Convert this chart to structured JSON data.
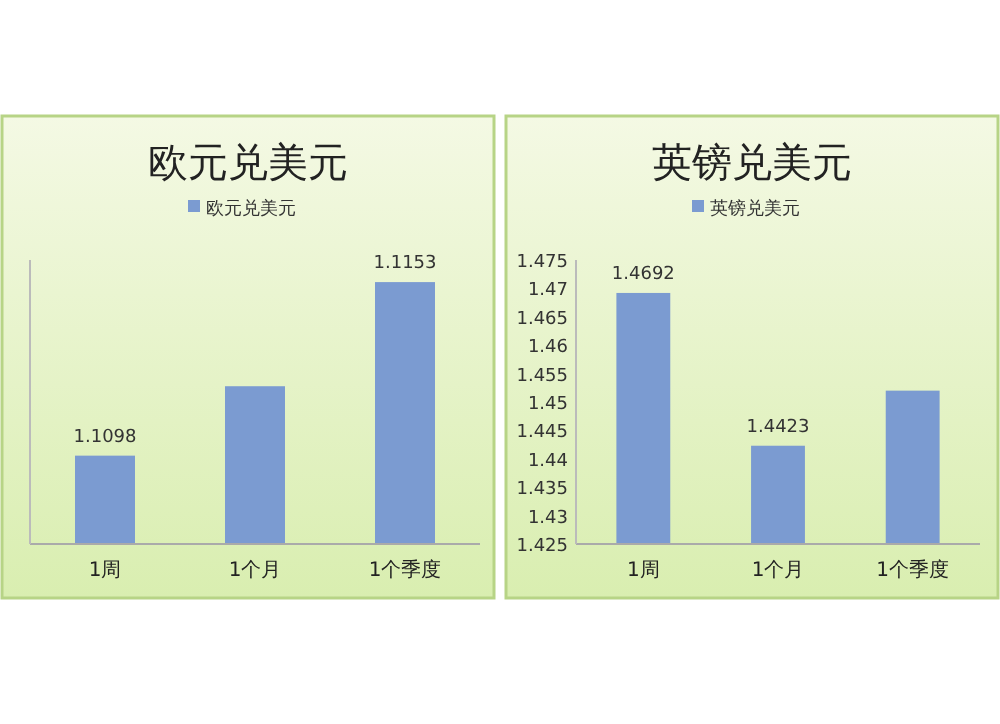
{
  "chart_data": [
    {
      "type": "bar",
      "title": "欧元兑美元",
      "categories": [
        "1周",
        "1个月",
        "1个季度"
      ],
      "series": [
        {
          "name": "欧元兑美元",
          "color": "#7b9bd1",
          "values": [
            1.1098,
            1.112,
            1.1153
          ],
          "value_labels": [
            "1.1098",
            null,
            "1.1153"
          ]
        }
      ],
      "ylim": [
        1.107,
        1.116
      ],
      "tick_labels": "x",
      "legend": "top",
      "grid": false
    },
    {
      "type": "bar",
      "title": "英镑兑美元",
      "categories": [
        "1周",
        "1个月",
        "1个季度"
      ],
      "series": [
        {
          "name": "英镑兑美元",
          "color": "#7b9bd1",
          "values": [
            1.4692,
            1.4423,
            1.452
          ],
          "value_labels": [
            "1.4692",
            "1.4423",
            null
          ]
        }
      ],
      "ylim": [
        1.425,
        1.475
      ],
      "yticks": [
        1.425,
        1.43,
        1.435,
        1.44,
        1.445,
        1.45,
        1.455,
        1.46,
        1.465,
        1.47,
        1.475
      ],
      "legend": "top",
      "grid": false
    }
  ]
}
